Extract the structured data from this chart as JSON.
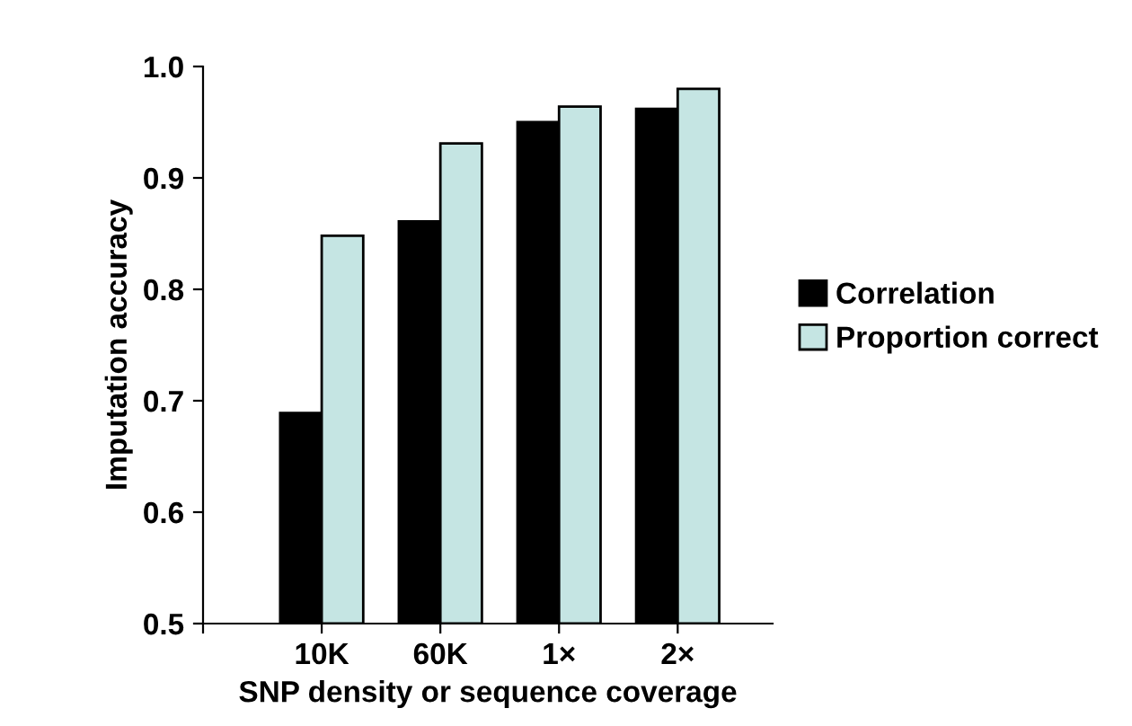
{
  "chart_data": {
    "type": "bar",
    "xlabel": "SNP density or sequence coverage",
    "ylabel": "Imputation accuracy",
    "categories": [
      null,
      "10K",
      "60K",
      "1×",
      "2×"
    ],
    "series": [
      {
        "name": "Correlation",
        "color": "#000000",
        "values": [
          null,
          0.689,
          0.861,
          0.95,
          0.962
        ]
      },
      {
        "name": "Proportion correct",
        "color": "#c5e5e3",
        "values": [
          null,
          0.848,
          0.931,
          0.964,
          0.98
        ]
      }
    ],
    "ylim": [
      0.5,
      1.0
    ],
    "yticks": [
      0.5,
      0.6,
      0.7,
      0.8,
      0.9,
      {
        "value": 1.0,
        "label": "1.0"
      }
    ],
    "grid": false,
    "legend": "right"
  }
}
